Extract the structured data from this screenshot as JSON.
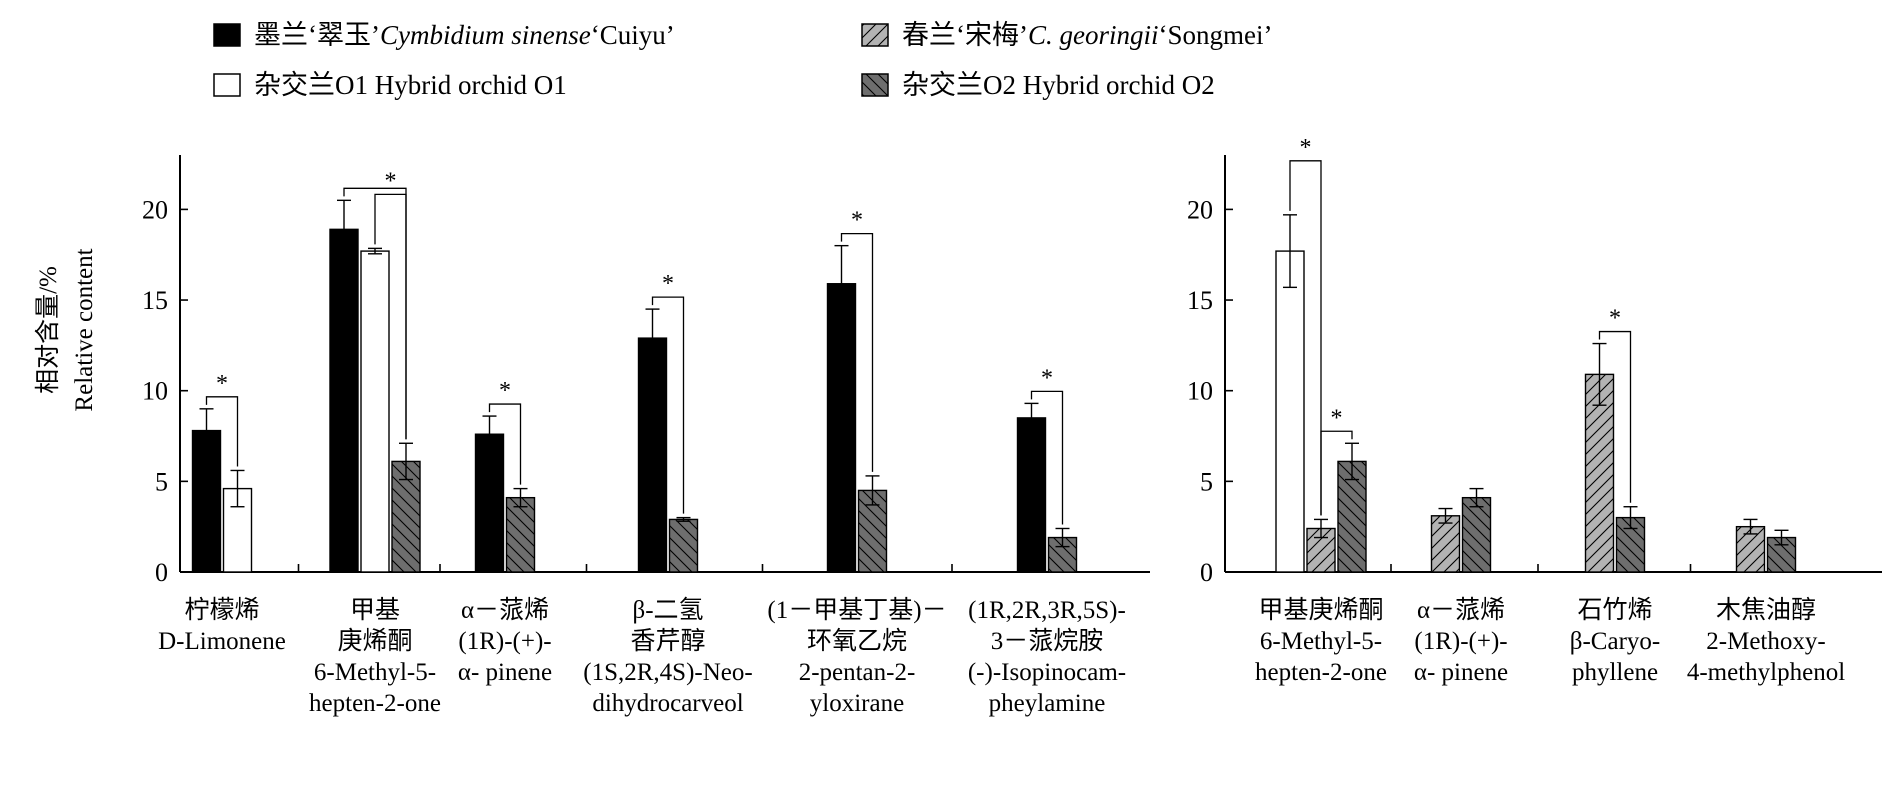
{
  "chart_data": [
    {
      "type": "bar",
      "panel": "left",
      "ylabel_cn": "相对含量/%",
      "ylabel_en": "Relative content",
      "ylim": [
        0,
        23
      ],
      "yticks": [
        0,
        5,
        10,
        15,
        20
      ],
      "grid": false,
      "legend_position": "top",
      "categories": [
        {
          "lines": [
            "柠檬烯",
            "D-Limonene"
          ]
        },
        {
          "lines": [
            "甲基",
            "庚烯酮",
            "6-Methyl-5-",
            "hepten-2-one"
          ]
        },
        {
          "lines": [
            "α－蒎烯",
            "(1R)-(+)-",
            "α- pinene"
          ]
        },
        {
          "lines": [
            "β-二氢",
            "香芹醇",
            "(1S,2R,4S)-Neo-",
            "dihydrocarveol"
          ]
        },
        {
          "lines": [
            "(1－甲基丁基)－",
            "环氧乙烷",
            "2-pentan-2-",
            "yloxirane"
          ]
        },
        {
          "lines": [
            "(1R,2R,3R,5S)-",
            "3－蒎烷胺",
            "(-)-Isopinocam-",
            "pheylamine"
          ]
        }
      ],
      "series": [
        {
          "name": "墨兰‘翠玉’ Cymbidium sinense ‘Cuiyu’",
          "values": [
            7.8,
            18.9,
            7.6,
            12.9,
            15.9,
            8.5
          ],
          "errors": [
            1.2,
            1.6,
            1.0,
            1.6,
            2.1,
            0.8
          ]
        },
        {
          "name": "春兰‘宋梅’ C. georingii ‘Songmei’",
          "values": [
            null,
            null,
            null,
            null,
            null,
            null
          ],
          "errors": [
            null,
            null,
            null,
            null,
            null,
            null
          ]
        },
        {
          "name": "杂交兰O1 Hybrid orchid O1",
          "values": [
            4.6,
            17.7,
            null,
            null,
            null,
            null
          ],
          "errors": [
            1.0,
            0.15,
            null,
            null,
            null,
            null
          ]
        },
        {
          "name": "杂交兰O2 Hybrid orchid O2",
          "values": [
            null,
            6.1,
            4.1,
            2.9,
            4.5,
            1.9
          ],
          "errors": [
            null,
            1.0,
            0.5,
            0.1,
            0.8,
            0.5
          ]
        }
      ],
      "significance": [
        {
          "category": 0,
          "from": 0,
          "to": 2,
          "label": "*"
        },
        {
          "category": 1,
          "from": 0,
          "to": 3,
          "label": ""
        },
        {
          "category": 1,
          "from": 2,
          "to": 3,
          "label": "*"
        },
        {
          "category": 2,
          "from": 0,
          "to": 3,
          "label": "*"
        },
        {
          "category": 3,
          "from": 0,
          "to": 3,
          "label": "*"
        },
        {
          "category": 4,
          "from": 0,
          "to": 3,
          "label": "*"
        },
        {
          "category": 5,
          "from": 0,
          "to": 3,
          "label": "*"
        }
      ]
    },
    {
      "type": "bar",
      "panel": "right",
      "ylim": [
        0,
        23
      ],
      "yticks": [
        0,
        5,
        10,
        15,
        20
      ],
      "grid": false,
      "categories": [
        {
          "lines": [
            "甲基庚烯酮",
            "6-Methyl-5-",
            "hepten-2-one"
          ]
        },
        {
          "lines": [
            "α－蒎烯",
            "(1R)-(+)-",
            "α- pinene"
          ]
        },
        {
          "lines": [
            "石竹烯",
            "β-Caryo-",
            "phyllene"
          ]
        },
        {
          "lines": [
            "木焦油醇",
            "2-Methoxy-",
            "4-methylphenol"
          ]
        }
      ],
      "series": [
        {
          "name": "墨兰‘翠玉’ Cymbidium sinense ‘Cuiyu’",
          "values": [
            null,
            null,
            null,
            null
          ],
          "errors": [
            null,
            null,
            null,
            null
          ]
        },
        {
          "name": "春兰‘宋梅’ C. georingii ‘Songmei’",
          "values": [
            2.4,
            3.1,
            10.9,
            2.5
          ],
          "errors": [
            0.5,
            0.4,
            1.7,
            0.4
          ]
        },
        {
          "name": "杂交兰O1 Hybrid orchid O1",
          "values": [
            17.7,
            null,
            null,
            null
          ],
          "errors": [
            2.0,
            null,
            null,
            null
          ]
        },
        {
          "name": "杂交兰O2 Hybrid orchid O2",
          "values": [
            6.1,
            4.1,
            3.0,
            1.9
          ],
          "errors": [
            1.0,
            0.5,
            0.6,
            0.4
          ]
        }
      ],
      "significance": [
        {
          "category": 0,
          "from": 1,
          "to": 3,
          "label": "*"
        },
        {
          "category": 0,
          "from": 1,
          "to": 2,
          "label": "*"
        },
        {
          "category": 2,
          "from": 1,
          "to": 3,
          "label": "*"
        }
      ]
    }
  ],
  "legend": [
    {
      "series": 0,
      "name_cn": "墨兰‘翠玉’",
      "name_latin": "Cymbidium sinense",
      "name_cultivar": "‘Cuiyu’"
    },
    {
      "series": 1,
      "name_cn": "春兰‘宋梅’",
      "name_latin": "C. georingii",
      "name_cultivar": "‘Songmei’"
    },
    {
      "series": 2,
      "name_cn": "杂交兰O1 Hybrid orchid O1",
      "name_latin": "",
      "name_cultivar": ""
    },
    {
      "series": 3,
      "name_cn": "杂交兰O2 Hybrid orchid O2",
      "name_latin": "",
      "name_cultivar": ""
    }
  ],
  "styles": {
    "colors": {
      "Cuiyu": "#000000",
      "Songmei": "#b3b3b3",
      "O1": "#ffffff",
      "O2": "#6e6e6e",
      "stroke": "#000000"
    },
    "patterns": [
      "solid",
      "hatch-forward",
      "none",
      "hatch-back"
    ]
  }
}
